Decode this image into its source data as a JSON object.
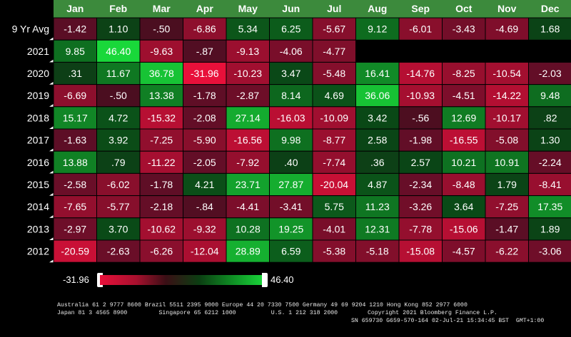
{
  "chart_data": {
    "type": "heatmap",
    "columns": [
      "Jan",
      "Feb",
      "Mar",
      "Apr",
      "May",
      "Jun",
      "Jul",
      "Aug",
      "Sep",
      "Oct",
      "Nov",
      "Dec"
    ],
    "rows": [
      {
        "label": "9 Yr Avg",
        "values": [
          "-1.42",
          "1.10",
          "-.50",
          "-6.86",
          "5.34",
          "6.25",
          "-5.67",
          "9.12",
          "-6.01",
          "-3.43",
          "-4.69",
          "1.68"
        ]
      },
      {
        "label": "2021",
        "values": [
          "9.85",
          "46.40",
          "-9.63",
          "-.87",
          "-9.13",
          "-4.06",
          "-4.77",
          null,
          null,
          null,
          null,
          null
        ]
      },
      {
        "label": "2020",
        "values": [
          ".31",
          "11.67",
          "36.78",
          "-31.96",
          "-10.23",
          "3.47",
          "-5.48",
          "16.41",
          "-14.76",
          "-8.25",
          "-10.54",
          "-2.03"
        ]
      },
      {
        "label": "2019",
        "values": [
          "-6.69",
          "-.50",
          "13.38",
          "-1.78",
          "-2.87",
          "8.14",
          "4.69",
          "36.06",
          "-10.93",
          "-4.51",
          "-14.22",
          "9.48"
        ]
      },
      {
        "label": "2018",
        "values": [
          "15.17",
          "4.72",
          "-15.32",
          "-2.08",
          "27.14",
          "-16.03",
          "-10.09",
          "3.42",
          "-.56",
          "12.69",
          "-10.17",
          ".82"
        ]
      },
      {
        "label": "2017",
        "values": [
          "-1.63",
          "3.92",
          "-7.25",
          "-5.90",
          "-16.56",
          "9.98",
          "-8.77",
          "2.58",
          "-1.98",
          "-16.55",
          "-5.08",
          "1.30"
        ]
      },
      {
        "label": "2016",
        "values": [
          "13.88",
          ".79",
          "-11.22",
          "-2.05",
          "-7.92",
          ".40",
          "-7.74",
          ".36",
          "2.57",
          "10.21",
          "10.91",
          "-2.24"
        ]
      },
      {
        "label": "2015",
        "values": [
          "-2.58",
          "-6.02",
          "-1.78",
          "4.21",
          "23.71",
          "27.87",
          "-20.04",
          "4.87",
          "-2.34",
          "-8.48",
          "1.79",
          "-8.41"
        ]
      },
      {
        "label": "2014",
        "values": [
          "-7.65",
          "-5.77",
          "-2.18",
          "-.84",
          "-4.41",
          "-3.41",
          "5.75",
          "11.23",
          "-3.26",
          "3.64",
          "-7.25",
          "17.35"
        ]
      },
      {
        "label": "2013",
        "values": [
          "-2.97",
          "3.70",
          "-10.62",
          "-9.32",
          "10.28",
          "19.25",
          "-4.01",
          "12.31",
          "-7.78",
          "-15.06",
          "-1.47",
          "1.89"
        ]
      },
      {
        "label": "2012",
        "values": [
          "-20.59",
          "-2.63",
          "-6.26",
          "-12.04",
          "28.89",
          "6.59",
          "-5.38",
          "-5.18",
          "-15.08",
          "-4.57",
          "-6.22",
          "-3.06"
        ]
      }
    ],
    "scale": {
      "min": -31.96,
      "max": 46.4
    },
    "colors": {
      "negative": "#e8103a",
      "neutral": "#2a0f14",
      "positive": "#19d83a",
      "header_bg": "#3c8a3c",
      "background": "#000000"
    }
  },
  "legend": {
    "min_label": "-31.96",
    "max_label": "46.40"
  },
  "footer": {
    "line1": "Australia 61 2 9777 8600 Brazil 5511 2395 9000 Europe 44 20 7330 7500 Germany 49 69 9204 1210 Hong Kong 852 2977 6000",
    "line2a": "Japan 81 3 4565 8900         Singapore 65 6212 1000          U.S. 1 212 318 2000",
    "line2b": "Copyright 2021 Bloomberg Finance L.P.",
    "line3": "SN 659730 G659-570-164 02-Jul-21 15:34:45 BST  GMT+1:00"
  }
}
